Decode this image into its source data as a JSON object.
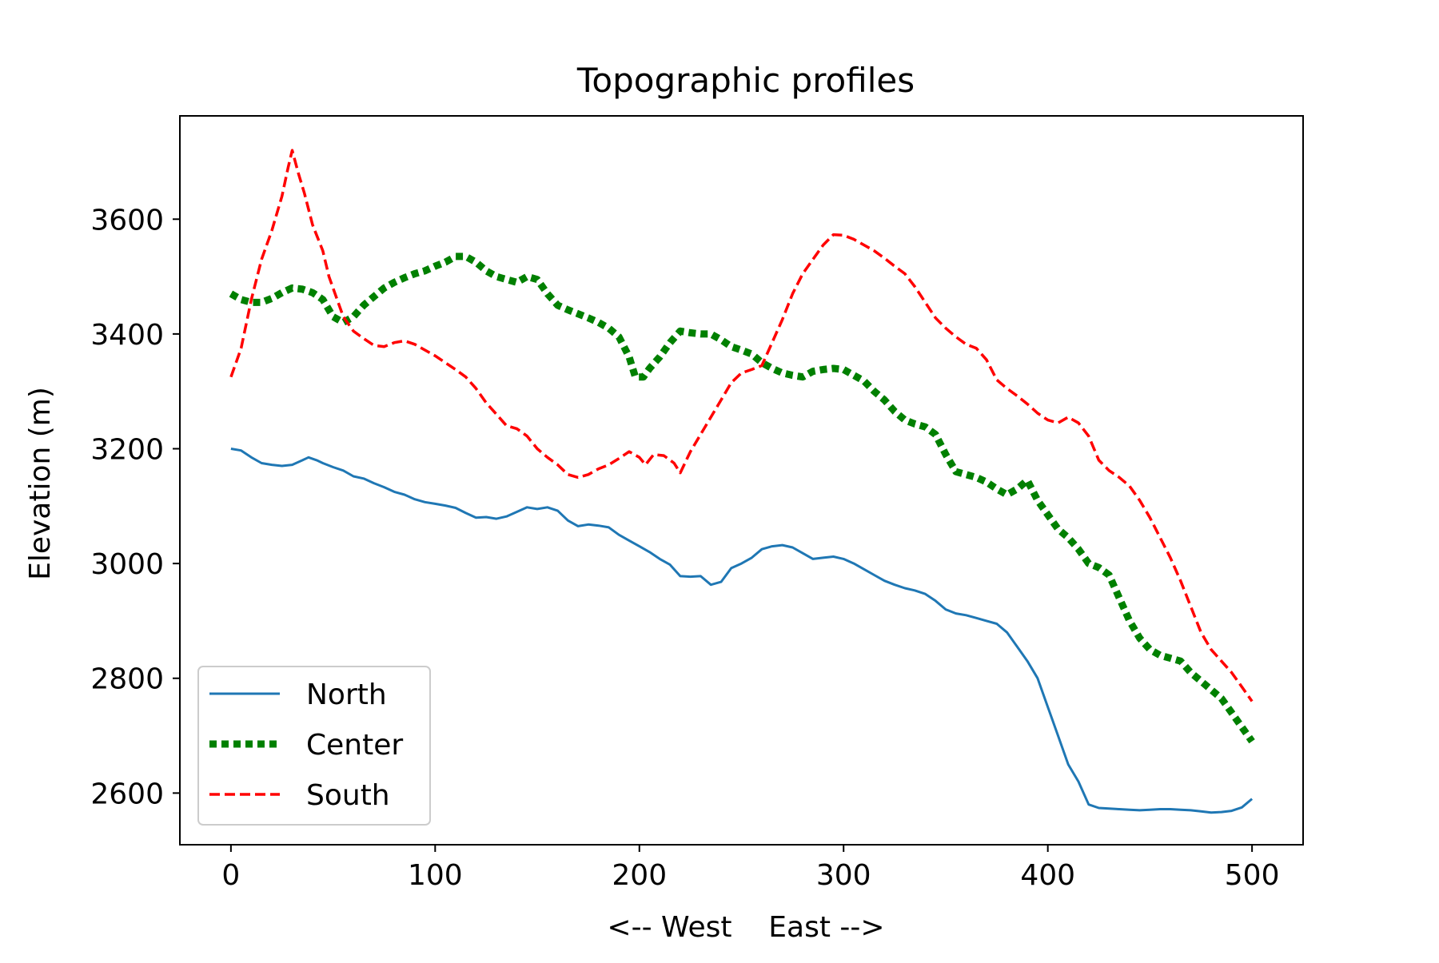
{
  "chart_data": {
    "type": "line",
    "title": "Topographic profiles",
    "xlabel": "<-- West    East -->",
    "ylabel": "Elevation (m)",
    "xlim": [
      -25,
      525
    ],
    "ylim": [
      2510,
      3780
    ],
    "xticks": [
      0,
      100,
      200,
      300,
      400,
      500
    ],
    "yticks": [
      2600,
      2800,
      3000,
      3200,
      3400,
      3600
    ],
    "grid": false,
    "legend_position": "lower-left",
    "series": [
      {
        "name": "North",
        "color": "#1f77b4",
        "style": "solid",
        "points": [
          [
            0,
            3200
          ],
          [
            5,
            3197
          ],
          [
            10,
            3185
          ],
          [
            15,
            3175
          ],
          [
            20,
            3172
          ],
          [
            25,
            3170
          ],
          [
            30,
            3172
          ],
          [
            35,
            3180
          ],
          [
            38,
            3185
          ],
          [
            42,
            3180
          ],
          [
            45,
            3175
          ],
          [
            50,
            3168
          ],
          [
            55,
            3162
          ],
          [
            60,
            3152
          ],
          [
            65,
            3148
          ],
          [
            70,
            3140
          ],
          [
            75,
            3133
          ],
          [
            80,
            3125
          ],
          [
            85,
            3120
          ],
          [
            90,
            3112
          ],
          [
            95,
            3107
          ],
          [
            100,
            3104
          ],
          [
            105,
            3101
          ],
          [
            110,
            3097
          ],
          [
            115,
            3088
          ],
          [
            120,
            3080
          ],
          [
            125,
            3081
          ],
          [
            130,
            3078
          ],
          [
            135,
            3082
          ],
          [
            140,
            3090
          ],
          [
            145,
            3098
          ],
          [
            150,
            3095
          ],
          [
            155,
            3098
          ],
          [
            160,
            3092
          ],
          [
            165,
            3075
          ],
          [
            170,
            3065
          ],
          [
            175,
            3068
          ],
          [
            180,
            3066
          ],
          [
            185,
            3063
          ],
          [
            190,
            3050
          ],
          [
            195,
            3040
          ],
          [
            200,
            3030
          ],
          [
            205,
            3020
          ],
          [
            210,
            3008
          ],
          [
            215,
            2998
          ],
          [
            220,
            2978
          ],
          [
            225,
            2977
          ],
          [
            230,
            2978
          ],
          [
            235,
            2963
          ],
          [
            240,
            2968
          ],
          [
            245,
            2992
          ],
          [
            250,
            3000
          ],
          [
            255,
            3010
          ],
          [
            260,
            3025
          ],
          [
            265,
            3030
          ],
          [
            270,
            3032
          ],
          [
            275,
            3028
          ],
          [
            280,
            3018
          ],
          [
            285,
            3008
          ],
          [
            290,
            3010
          ],
          [
            295,
            3012
          ],
          [
            300,
            3008
          ],
          [
            305,
            3000
          ],
          [
            310,
            2990
          ],
          [
            315,
            2980
          ],
          [
            320,
            2970
          ],
          [
            325,
            2963
          ],
          [
            330,
            2957
          ],
          [
            335,
            2953
          ],
          [
            340,
            2947
          ],
          [
            345,
            2935
          ],
          [
            350,
            2920
          ],
          [
            355,
            2913
          ],
          [
            360,
            2910
          ],
          [
            365,
            2905
          ],
          [
            370,
            2900
          ],
          [
            375,
            2895
          ],
          [
            380,
            2880
          ],
          [
            385,
            2855
          ],
          [
            390,
            2830
          ],
          [
            395,
            2800
          ],
          [
            400,
            2750
          ],
          [
            405,
            2700
          ],
          [
            410,
            2650
          ],
          [
            415,
            2620
          ],
          [
            420,
            2580
          ],
          [
            425,
            2574
          ],
          [
            430,
            2573
          ],
          [
            435,
            2572
          ],
          [
            440,
            2571
          ],
          [
            445,
            2570
          ],
          [
            450,
            2571
          ],
          [
            455,
            2572
          ],
          [
            460,
            2572
          ],
          [
            465,
            2571
          ],
          [
            470,
            2570
          ],
          [
            475,
            2568
          ],
          [
            480,
            2566
          ],
          [
            485,
            2567
          ],
          [
            490,
            2569
          ],
          [
            495,
            2575
          ],
          [
            500,
            2590
          ]
        ]
      },
      {
        "name": "Center",
        "color": "#008000",
        "style": "dotted",
        "points": [
          [
            0,
            3470
          ],
          [
            5,
            3460
          ],
          [
            10,
            3455
          ],
          [
            15,
            3455
          ],
          [
            20,
            3462
          ],
          [
            25,
            3472
          ],
          [
            30,
            3480
          ],
          [
            35,
            3478
          ],
          [
            40,
            3472
          ],
          [
            45,
            3460
          ],
          [
            50,
            3430
          ],
          [
            55,
            3420
          ],
          [
            60,
            3430
          ],
          [
            65,
            3450
          ],
          [
            70,
            3465
          ],
          [
            75,
            3480
          ],
          [
            80,
            3490
          ],
          [
            85,
            3498
          ],
          [
            90,
            3505
          ],
          [
            95,
            3510
          ],
          [
            100,
            3518
          ],
          [
            105,
            3525
          ],
          [
            110,
            3535
          ],
          [
            115,
            3535
          ],
          [
            120,
            3525
          ],
          [
            125,
            3510
          ],
          [
            130,
            3500
          ],
          [
            135,
            3495
          ],
          [
            140,
            3490
          ],
          [
            145,
            3500
          ],
          [
            150,
            3495
          ],
          [
            155,
            3470
          ],
          [
            160,
            3450
          ],
          [
            165,
            3442
          ],
          [
            170,
            3435
          ],
          [
            175,
            3428
          ],
          [
            180,
            3420
          ],
          [
            185,
            3410
          ],
          [
            190,
            3395
          ],
          [
            195,
            3360
          ],
          [
            198,
            3325
          ],
          [
            202,
            3325
          ],
          [
            205,
            3340
          ],
          [
            210,
            3360
          ],
          [
            215,
            3385
          ],
          [
            220,
            3405
          ],
          [
            225,
            3402
          ],
          [
            230,
            3400
          ],
          [
            235,
            3400
          ],
          [
            240,
            3390
          ],
          [
            245,
            3378
          ],
          [
            250,
            3372
          ],
          [
            255,
            3365
          ],
          [
            260,
            3350
          ],
          [
            265,
            3340
          ],
          [
            270,
            3332
          ],
          [
            275,
            3328
          ],
          [
            280,
            3325
          ],
          [
            285,
            3335
          ],
          [
            290,
            3338
          ],
          [
            295,
            3340
          ],
          [
            300,
            3338
          ],
          [
            305,
            3328
          ],
          [
            310,
            3318
          ],
          [
            315,
            3300
          ],
          [
            320,
            3285
          ],
          [
            325,
            3265
          ],
          [
            330,
            3250
          ],
          [
            335,
            3243
          ],
          [
            340,
            3238
          ],
          [
            345,
            3225
          ],
          [
            350,
            3190
          ],
          [
            355,
            3160
          ],
          [
            360,
            3155
          ],
          [
            365,
            3150
          ],
          [
            370,
            3142
          ],
          [
            375,
            3130
          ],
          [
            380,
            3120
          ],
          [
            385,
            3130
          ],
          [
            390,
            3145
          ],
          [
            395,
            3110
          ],
          [
            400,
            3085
          ],
          [
            405,
            3060
          ],
          [
            410,
            3045
          ],
          [
            415,
            3025
          ],
          [
            420,
            3000
          ],
          [
            425,
            2993
          ],
          [
            430,
            2980
          ],
          [
            435,
            2940
          ],
          [
            440,
            2900
          ],
          [
            445,
            2870
          ],
          [
            450,
            2850
          ],
          [
            455,
            2840
          ],
          [
            460,
            2835
          ],
          [
            465,
            2830
          ],
          [
            470,
            2810
          ],
          [
            475,
            2795
          ],
          [
            480,
            2780
          ],
          [
            485,
            2765
          ],
          [
            490,
            2740
          ],
          [
            495,
            2715
          ],
          [
            500,
            2690
          ]
        ]
      },
      {
        "name": "South",
        "color": "#ff0000",
        "style": "dashed",
        "points": [
          [
            0,
            3325
          ],
          [
            5,
            3375
          ],
          [
            10,
            3460
          ],
          [
            15,
            3530
          ],
          [
            20,
            3580
          ],
          [
            25,
            3640
          ],
          [
            28,
            3690
          ],
          [
            30,
            3720
          ],
          [
            33,
            3680
          ],
          [
            36,
            3645
          ],
          [
            40,
            3590
          ],
          [
            45,
            3545
          ],
          [
            48,
            3500
          ],
          [
            52,
            3460
          ],
          [
            55,
            3430
          ],
          [
            60,
            3405
          ],
          [
            65,
            3392
          ],
          [
            70,
            3380
          ],
          [
            75,
            3378
          ],
          [
            80,
            3385
          ],
          [
            85,
            3388
          ],
          [
            90,
            3382
          ],
          [
            95,
            3372
          ],
          [
            100,
            3362
          ],
          [
            105,
            3350
          ],
          [
            110,
            3338
          ],
          [
            115,
            3325
          ],
          [
            120,
            3305
          ],
          [
            125,
            3280
          ],
          [
            130,
            3260
          ],
          [
            135,
            3240
          ],
          [
            140,
            3235
          ],
          [
            145,
            3222
          ],
          [
            150,
            3200
          ],
          [
            155,
            3185
          ],
          [
            160,
            3172
          ],
          [
            165,
            3155
          ],
          [
            170,
            3150
          ],
          [
            175,
            3155
          ],
          [
            180,
            3165
          ],
          [
            185,
            3172
          ],
          [
            190,
            3183
          ],
          [
            195,
            3195
          ],
          [
            200,
            3185
          ],
          [
            203,
            3172
          ],
          [
            207,
            3190
          ],
          [
            212,
            3188
          ],
          [
            217,
            3175
          ],
          [
            220,
            3158
          ],
          [
            225,
            3195
          ],
          [
            230,
            3225
          ],
          [
            235,
            3255
          ],
          [
            240,
            3285
          ],
          [
            245,
            3315
          ],
          [
            250,
            3332
          ],
          [
            255,
            3338
          ],
          [
            260,
            3345
          ],
          [
            265,
            3385
          ],
          [
            270,
            3425
          ],
          [
            275,
            3470
          ],
          [
            280,
            3505
          ],
          [
            285,
            3530
          ],
          [
            290,
            3555
          ],
          [
            295,
            3573
          ],
          [
            300,
            3572
          ],
          [
            305,
            3565
          ],
          [
            310,
            3555
          ],
          [
            315,
            3545
          ],
          [
            320,
            3532
          ],
          [
            325,
            3518
          ],
          [
            330,
            3505
          ],
          [
            335,
            3482
          ],
          [
            340,
            3455
          ],
          [
            345,
            3428
          ],
          [
            350,
            3410
          ],
          [
            355,
            3395
          ],
          [
            360,
            3382
          ],
          [
            365,
            3375
          ],
          [
            370,
            3355
          ],
          [
            375,
            3320
          ],
          [
            380,
            3305
          ],
          [
            385,
            3292
          ],
          [
            390,
            3278
          ],
          [
            395,
            3262
          ],
          [
            400,
            3250
          ],
          [
            405,
            3245
          ],
          [
            410,
            3255
          ],
          [
            415,
            3245
          ],
          [
            420,
            3222
          ],
          [
            425,
            3180
          ],
          [
            430,
            3162
          ],
          [
            435,
            3150
          ],
          [
            440,
            3135
          ],
          [
            445,
            3110
          ],
          [
            450,
            3080
          ],
          [
            455,
            3045
          ],
          [
            460,
            3010
          ],
          [
            465,
            2970
          ],
          [
            470,
            2925
          ],
          [
            475,
            2880
          ],
          [
            480,
            2850
          ],
          [
            485,
            2830
          ],
          [
            490,
            2810
          ],
          [
            495,
            2785
          ],
          [
            500,
            2760
          ]
        ]
      }
    ]
  }
}
